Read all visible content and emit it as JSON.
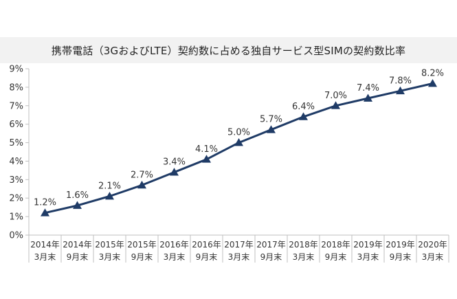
{
  "chart_data": {
    "type": "line",
    "title": "携帯電話（3GおよびLTE）契約数に占める独自サービス型SIMの契約数比率",
    "categories": [
      [
        "2014年",
        "3月末"
      ],
      [
        "2014年",
        "9月末"
      ],
      [
        "2015年",
        "3月末"
      ],
      [
        "2015年",
        "9月末"
      ],
      [
        "2016年",
        "3月末"
      ],
      [
        "2016年",
        "9月末"
      ],
      [
        "2017年",
        "3月末"
      ],
      [
        "2017年",
        "9月末"
      ],
      [
        "2018年",
        "3月末"
      ],
      [
        "2018年",
        "9月末"
      ],
      [
        "2019年",
        "3月末"
      ],
      [
        "2019年",
        "9月末"
      ],
      [
        "2020年",
        "3月末"
      ]
    ],
    "series": [
      {
        "values": [
          1.2,
          1.6,
          2.1,
          2.7,
          3.4,
          4.1,
          5.0,
          5.7,
          6.4,
          7.0,
          7.4,
          7.8,
          8.2
        ]
      }
    ],
    "data_labels": [
      "1.2%",
      "1.6%",
      "2.1%",
      "2.7%",
      "3.4%",
      "4.1%",
      "5.0%",
      "5.7%",
      "6.4%",
      "7.0%",
      "7.4%",
      "7.8%",
      "8.2%"
    ],
    "yticks": [
      "0%",
      "1%",
      "2%",
      "3%",
      "4%",
      "5%",
      "6%",
      "7%",
      "8%",
      "9%"
    ],
    "ylim": [
      0,
      9
    ],
    "grid": false,
    "marker": "triangle",
    "color": "#1f3b66",
    "axis_color": "#bfbfbf",
    "band_color": "#f2f2f2"
  }
}
